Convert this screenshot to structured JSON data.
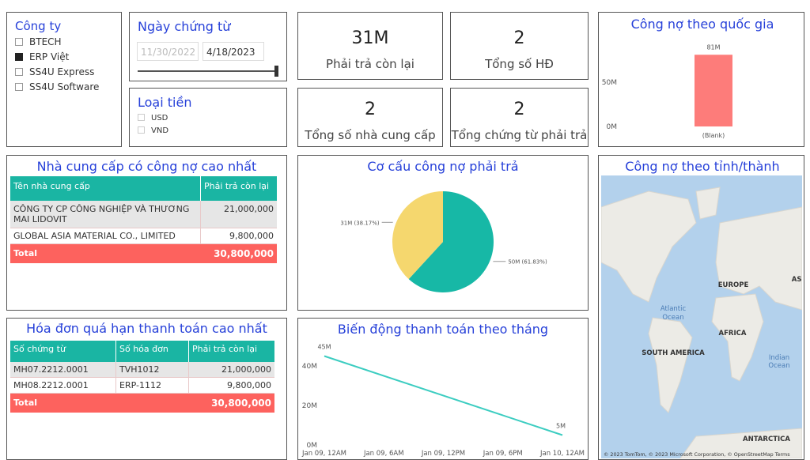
{
  "slicers": {
    "company": {
      "title": "Công ty",
      "items": [
        "BTECH",
        "ERP Việt",
        "SS4U Express",
        "SS4U Software"
      ],
      "checked": [
        false,
        true,
        false,
        false
      ]
    },
    "date": {
      "title": "Ngày chứng từ",
      "start": "11/30/2022",
      "end": "4/18/2023"
    },
    "currency": {
      "title": "Loại tiền",
      "items": [
        "USD",
        "VND"
      ]
    }
  },
  "cards": [
    {
      "value": "31M",
      "label": "Phải trả còn lại"
    },
    {
      "value": "2",
      "label": "Tổng số HĐ"
    },
    {
      "value": "2",
      "label": "Tổng số nhà cung cấp"
    },
    {
      "value": "2",
      "label": "Tổng chứng từ phải trả"
    }
  ],
  "tables": [
    {
      "title": "Nhà cung cấp có công nợ cao nhất",
      "columns": [
        "Tên nhà cung cấp",
        "Phải trả còn lại"
      ],
      "rows": [
        [
          "CÔNG TY CP CÔNG NGHIỆP VÀ THƯƠNG MAI LIDOVIT",
          "21,000,000"
        ],
        [
          "GLOBAL ASIA MATERIAL CO., LIMITED",
          "9,800,000"
        ]
      ],
      "total": [
        "Total",
        "30,800,000"
      ]
    },
    {
      "title": "Hóa đơn quá hạn thanh toán cao nhất",
      "columns": [
        "Số chứng từ",
        "Số hóa đơn",
        "Phải trả còn lại"
      ],
      "rows": [
        [
          "MH07.2212.0001",
          "TVH1012",
          "21,000,000"
        ],
        [
          "MH08.2212.0001",
          "ERP-1112",
          "9,800,000"
        ]
      ],
      "total": [
        "Total",
        "",
        "30,800,000"
      ]
    }
  ],
  "map": {
    "title": "Công nợ theo tỉnh/thành",
    "labels": [
      "EUROPE",
      "ASIA",
      "Atlantic",
      "Ocean",
      "AFRICA",
      "SOUTH AMERICA",
      "Indian",
      "Ocean",
      "ANTARCTICA"
    ],
    "attribution": "© 2023 TomTom, © 2023 Microsoft Corporation, © OpenStreetMap Terms"
  },
  "chart_data": [
    {
      "type": "bar",
      "title": "Công nợ theo quốc gia",
      "categories": [
        "(Blank)"
      ],
      "values": [
        81000000
      ],
      "value_labels": [
        "81M"
      ],
      "color": "#fd7c7a",
      "ylim": [
        0,
        90000000
      ],
      "yticks": [
        {
          "value": 0,
          "label": "0M"
        },
        {
          "value": 50000000,
          "label": "50M"
        }
      ]
    },
    {
      "type": "pie",
      "title": "Cơ cấu công nợ phải trả",
      "values": [
        61.83,
        38.17
      ],
      "value_labels": [
        "50M (61.83%)",
        "31M (38.17%)"
      ],
      "colors": [
        "#17b8a6",
        "#f5d76e"
      ]
    },
    {
      "type": "line",
      "title": "Biến động thanh toán theo tháng",
      "x": [
        0,
        24
      ],
      "values": [
        45000000,
        5000000
      ],
      "value_labels": [
        "45M",
        "5M"
      ],
      "color": "#3ccdc1",
      "xlim": [
        0,
        24
      ],
      "xticks": [
        {
          "value": 0,
          "label": "Jan 09, 12AM"
        },
        {
          "value": 6,
          "label": "Jan 09, 6AM"
        },
        {
          "value": 12,
          "label": "Jan 09, 12PM"
        },
        {
          "value": 18,
          "label": "Jan 09, 6PM"
        },
        {
          "value": 24,
          "label": "Jan 10, 12AM"
        }
      ],
      "ylim": [
        0,
        48000000
      ],
      "yticks": [
        {
          "value": 0,
          "label": "0M"
        },
        {
          "value": 20000000,
          "label": "20M"
        },
        {
          "value": 40000000,
          "label": "40M"
        }
      ],
      "grid": false
    }
  ]
}
